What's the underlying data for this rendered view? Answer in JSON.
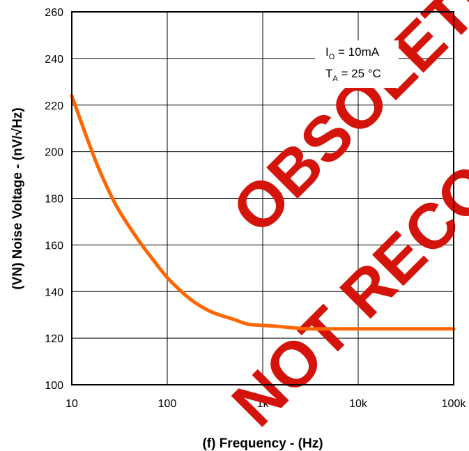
{
  "chart_data": {
    "type": "line",
    "title": "",
    "xlabel": "(f)  Frequency - (Hz)",
    "ylabel": "(VN) Noise Voltage -  (nV/√Hz)",
    "x_scale": "log",
    "xlim": [
      10,
      100000
    ],
    "ylim": [
      100,
      260
    ],
    "x_ticks": [
      10,
      100,
      1000,
      10000,
      100000
    ],
    "x_tick_labels": [
      "10",
      "100",
      "1k",
      "10k",
      "100k"
    ],
    "y_ticks": [
      100,
      120,
      140,
      160,
      180,
      200,
      220,
      240,
      260
    ],
    "y_tick_labels": [
      "100",
      "120",
      "140",
      "160",
      "180",
      "200",
      "220",
      "240",
      "260"
    ],
    "grid": true,
    "series": [
      {
        "color": "#ff6600",
        "x": [
          10,
          15,
          20,
          30,
          50,
          70,
          100,
          150,
          200,
          300,
          500,
          700,
          1000,
          1500,
          2000,
          3000,
          5000,
          10000,
          20000,
          50000,
          100000
        ],
        "y": [
          224,
          204,
          191,
          176,
          162,
          154,
          146,
          139,
          135,
          131,
          128,
          126,
          125.5,
          125,
          124.5,
          124,
          124,
          124,
          124,
          124,
          124
        ]
      }
    ],
    "annotations": {
      "io_label": "I",
      "io_sub": "O",
      "io_value": " = 10mA",
      "ta_label": "T",
      "ta_sub": "A",
      "ta_value": " = 25 °C"
    },
    "watermark": {
      "line1": "OBSOLETE",
      "line2": "NOT RECOMMENDED",
      "color": "#d4140b"
    }
  }
}
